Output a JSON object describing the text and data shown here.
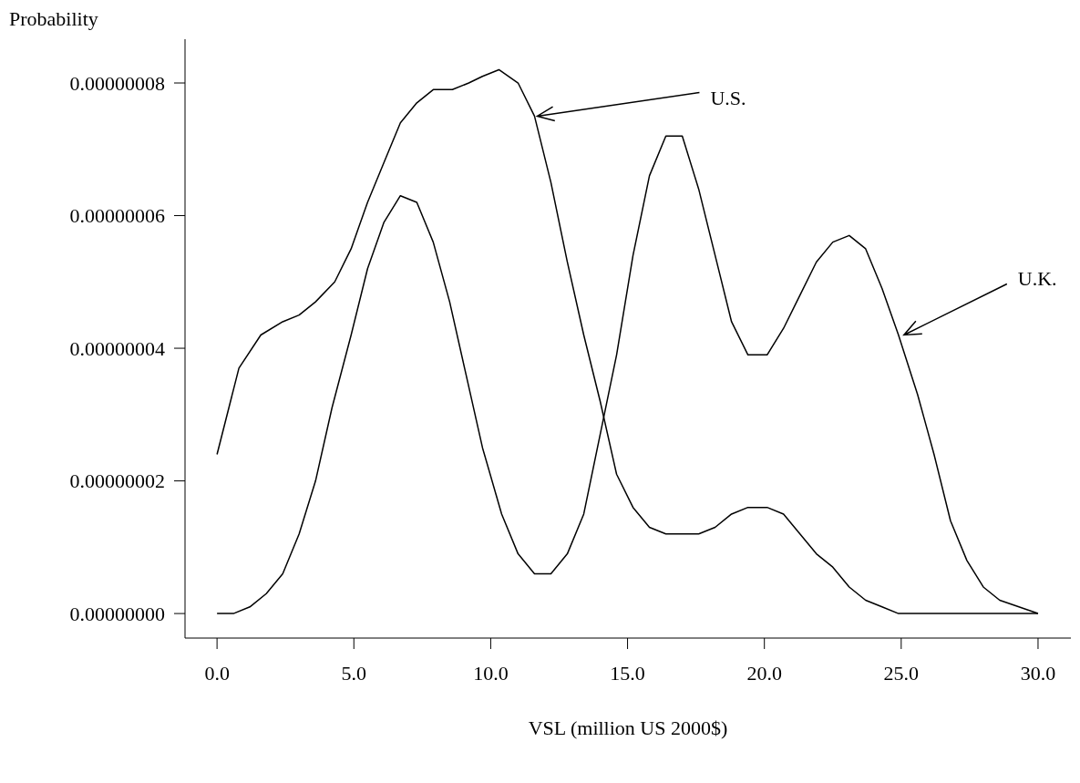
{
  "chart_data": {
    "type": "line",
    "ylabel": "Probability",
    "xlabel": "VSL (million US 2000$)",
    "xlim": [
      -1.17,
      31.2
    ],
    "xticks": [
      {
        "value": 0,
        "label": "0.0"
      },
      {
        "value": 5,
        "label": "5.0"
      },
      {
        "value": 10,
        "label": "10.0"
      },
      {
        "value": 15,
        "label": "15.0"
      },
      {
        "value": 20,
        "label": "20.0"
      },
      {
        "value": 25,
        "label": "25.0"
      },
      {
        "value": 30,
        "label": "30.0"
      }
    ],
    "ylim": [
      -3.7e-09,
      8.66e-08
    ],
    "yticks": [
      {
        "value": 0,
        "label": "0.00000000"
      },
      {
        "value": 2e-08,
        "label": "0.00000002"
      },
      {
        "value": 4e-08,
        "label": "0.00000004"
      },
      {
        "value": 6e-08,
        "label": "0.00000006"
      },
      {
        "value": 8e-08,
        "label": "0.00000008"
      }
    ],
    "grid": false,
    "legend": false,
    "marker": "none",
    "line_style": "solid",
    "series": [
      {
        "color": "#000000",
        "x": [
          0,
          0.8,
          1.6,
          2.4,
          3.0,
          3.6,
          4.3,
          4.9,
          5.5,
          6.1,
          6.7,
          7.3,
          7.9,
          8.6,
          9.2,
          9.7,
          10.3,
          11.0,
          11.6,
          12.2,
          12.8,
          13.4,
          14.0,
          14.6,
          15.2,
          15.8,
          16.4,
          17.0,
          17.6,
          18.2,
          18.8,
          19.4,
          20.1,
          20.7,
          21.3,
          21.9,
          22.5,
          23.1,
          23.7,
          24.3,
          24.9,
          25.6,
          30
        ],
        "values": [
          2.4e-08,
          3.7e-08,
          4.2e-08,
          4.4e-08,
          4.5e-08,
          4.7e-08,
          5e-08,
          5.5e-08,
          6.2e-08,
          6.8e-08,
          7.4e-08,
          7.7e-08,
          7.9e-08,
          7.9e-08,
          8e-08,
          8.1e-08,
          8.2e-08,
          8e-08,
          7.5e-08,
          6.5e-08,
          5.3e-08,
          4.2e-08,
          3.2e-08,
          2.1e-08,
          1.6e-08,
          1.3e-08,
          1.2e-08,
          1.2e-08,
          1.2e-08,
          1.3e-08,
          1.5e-08,
          1.6e-08,
          1.6e-08,
          1.5e-08,
          1.2e-08,
          9e-09,
          7e-09,
          4e-09,
          2e-09,
          1e-09,
          0,
          0,
          0
        ]
      },
      {
        "color": "#000000",
        "x": [
          0,
          0.6,
          1.2,
          1.8,
          2.4,
          3.0,
          3.6,
          4.2,
          4.9,
          5.5,
          6.1,
          6.7,
          7.3,
          7.9,
          8.5,
          9.1,
          9.7,
          10.4,
          11.0,
          11.6,
          12.2,
          12.8,
          13.4,
          14.0,
          14.6,
          15.2,
          15.8,
          16.4,
          17.0,
          17.6,
          18.2,
          18.8,
          19.4,
          20.1,
          20.7,
          21.3,
          21.9,
          22.5,
          23.1,
          23.7,
          24.3,
          24.9,
          25.6,
          26.2,
          26.8,
          27.4,
          28.0,
          28.6,
          30
        ],
        "values": [
          0,
          0,
          1e-09,
          3e-09,
          6e-09,
          1.2e-08,
          2e-08,
          3.1e-08,
          4.2e-08,
          5.2e-08,
          5.9e-08,
          6.3e-08,
          6.2e-08,
          5.6e-08,
          4.7e-08,
          3.6e-08,
          2.5e-08,
          1.5e-08,
          9e-09,
          6e-09,
          6e-09,
          9e-09,
          1.5e-08,
          2.7e-08,
          3.9e-08,
          5.4e-08,
          6.6e-08,
          7.2e-08,
          7.2e-08,
          6.4e-08,
          5.4e-08,
          4.4e-08,
          3.9e-08,
          3.9e-08,
          4.3e-08,
          4.8e-08,
          5.3e-08,
          5.6e-08,
          5.7e-08,
          5.5e-08,
          4.9e-08,
          4.2e-08,
          3.3e-08,
          2.4e-08,
          1.4e-08,
          8e-09,
          4e-09,
          2e-09,
          0
        ]
      }
    ],
    "annotations": [
      {
        "text": "U.S.",
        "x": 11.7,
        "y": 7.5e-08
      },
      {
        "text": "U.K.",
        "x": 25.1,
        "y": 4.2e-08
      }
    ]
  }
}
